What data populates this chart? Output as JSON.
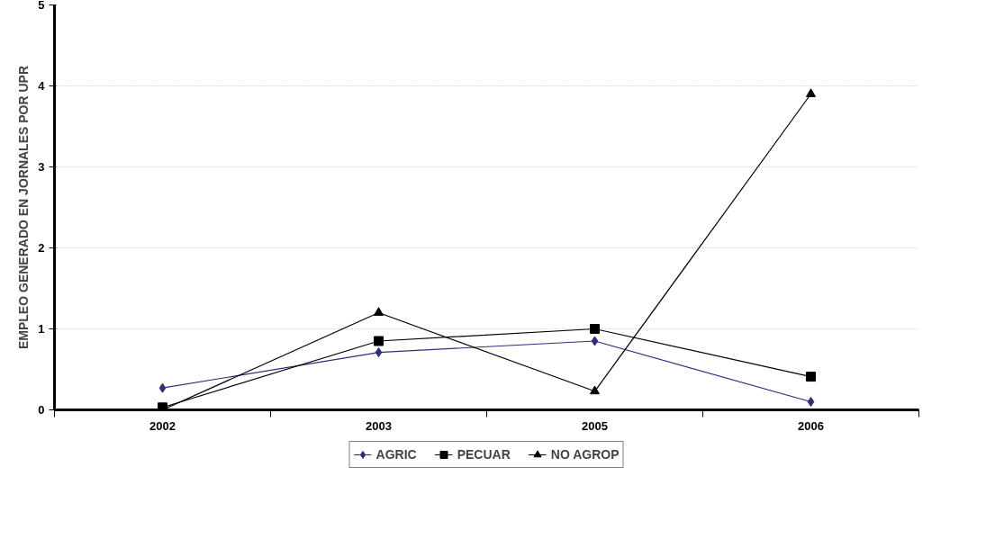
{
  "chart_data": {
    "type": "line",
    "ylabel": "EMPLEO GENERADO EN JORNALES POR UPR",
    "categories": [
      "2002",
      "2003",
      "2005",
      "2006"
    ],
    "series": [
      {
        "name": "AGRIC",
        "color": "#2e2e7a",
        "marker": "diamond",
        "values": [
          0.27,
          0.71,
          0.85,
          0.1
        ]
      },
      {
        "name": "PECUAR",
        "color": "#000000",
        "marker": "square",
        "values": [
          0.03,
          0.85,
          1.0,
          0.41
        ]
      },
      {
        "name": "NO AGROP",
        "color": "#000000",
        "marker": "triangle",
        "values": [
          0.0,
          1.2,
          0.23,
          3.9
        ]
      }
    ],
    "ylim": [
      0,
      5
    ],
    "yticks": [
      0,
      1,
      2,
      3,
      4,
      5
    ],
    "grid": "y",
    "legend": "bottom",
    "line_style": "solid"
  }
}
